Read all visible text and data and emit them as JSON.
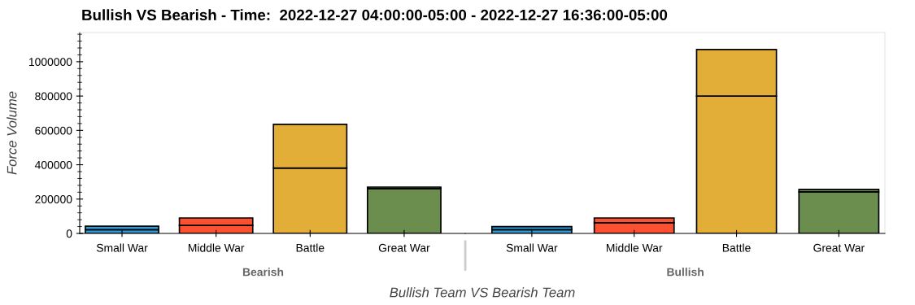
{
  "chart_data": [
    {
      "type": "bar",
      "title": "Bullish VS Bearish - Time:  2022-12-27 04:00:00-05:00 - 2022-12-27 16:36:00-05:00",
      "ylabel": "Force Volume",
      "categories": [
        "Small War",
        "Middle War",
        "Battle",
        "Great War"
      ],
      "annotations": [
        "Bearish"
      ],
      "stacked": true,
      "series": [
        {
          "colors": [
            "#2b9ad8",
            "#fc5130",
            "#e3ae38",
            "#6b8e4e"
          ],
          "values": [
            22000,
            47000,
            381000,
            261000
          ]
        },
        {
          "colors": [
            "#2b9ad8",
            "#fc5130",
            "#e3ae38",
            "#6b8e4e"
          ],
          "values": [
            20000,
            43000,
            254000,
            9000
          ]
        }
      ],
      "ylim": [
        0,
        1170000
      ],
      "yticks": [
        0,
        200000,
        400000,
        600000,
        800000,
        1000000
      ]
    },
    {
      "type": "bar",
      "xlabel": "Bullish Team VS Bearish Team",
      "categories": [
        "Small War",
        "Middle War",
        "Battle",
        "Great War"
      ],
      "annotations": [
        "Bullish"
      ],
      "stacked": true,
      "series": [
        {
          "colors": [
            "#2b9ad8",
            "#fc5130",
            "#e3ae38",
            "#6b8e4e"
          ],
          "values": [
            22000,
            62000,
            800000,
            242000
          ]
        },
        {
          "colors": [
            "#2b9ad8",
            "#fc5130",
            "#e3ae38",
            "#6b8e4e"
          ],
          "values": [
            18000,
            28000,
            271000,
            14000
          ]
        }
      ],
      "ylim": [
        0,
        1170000
      ],
      "tick_labels": "x"
    }
  ]
}
